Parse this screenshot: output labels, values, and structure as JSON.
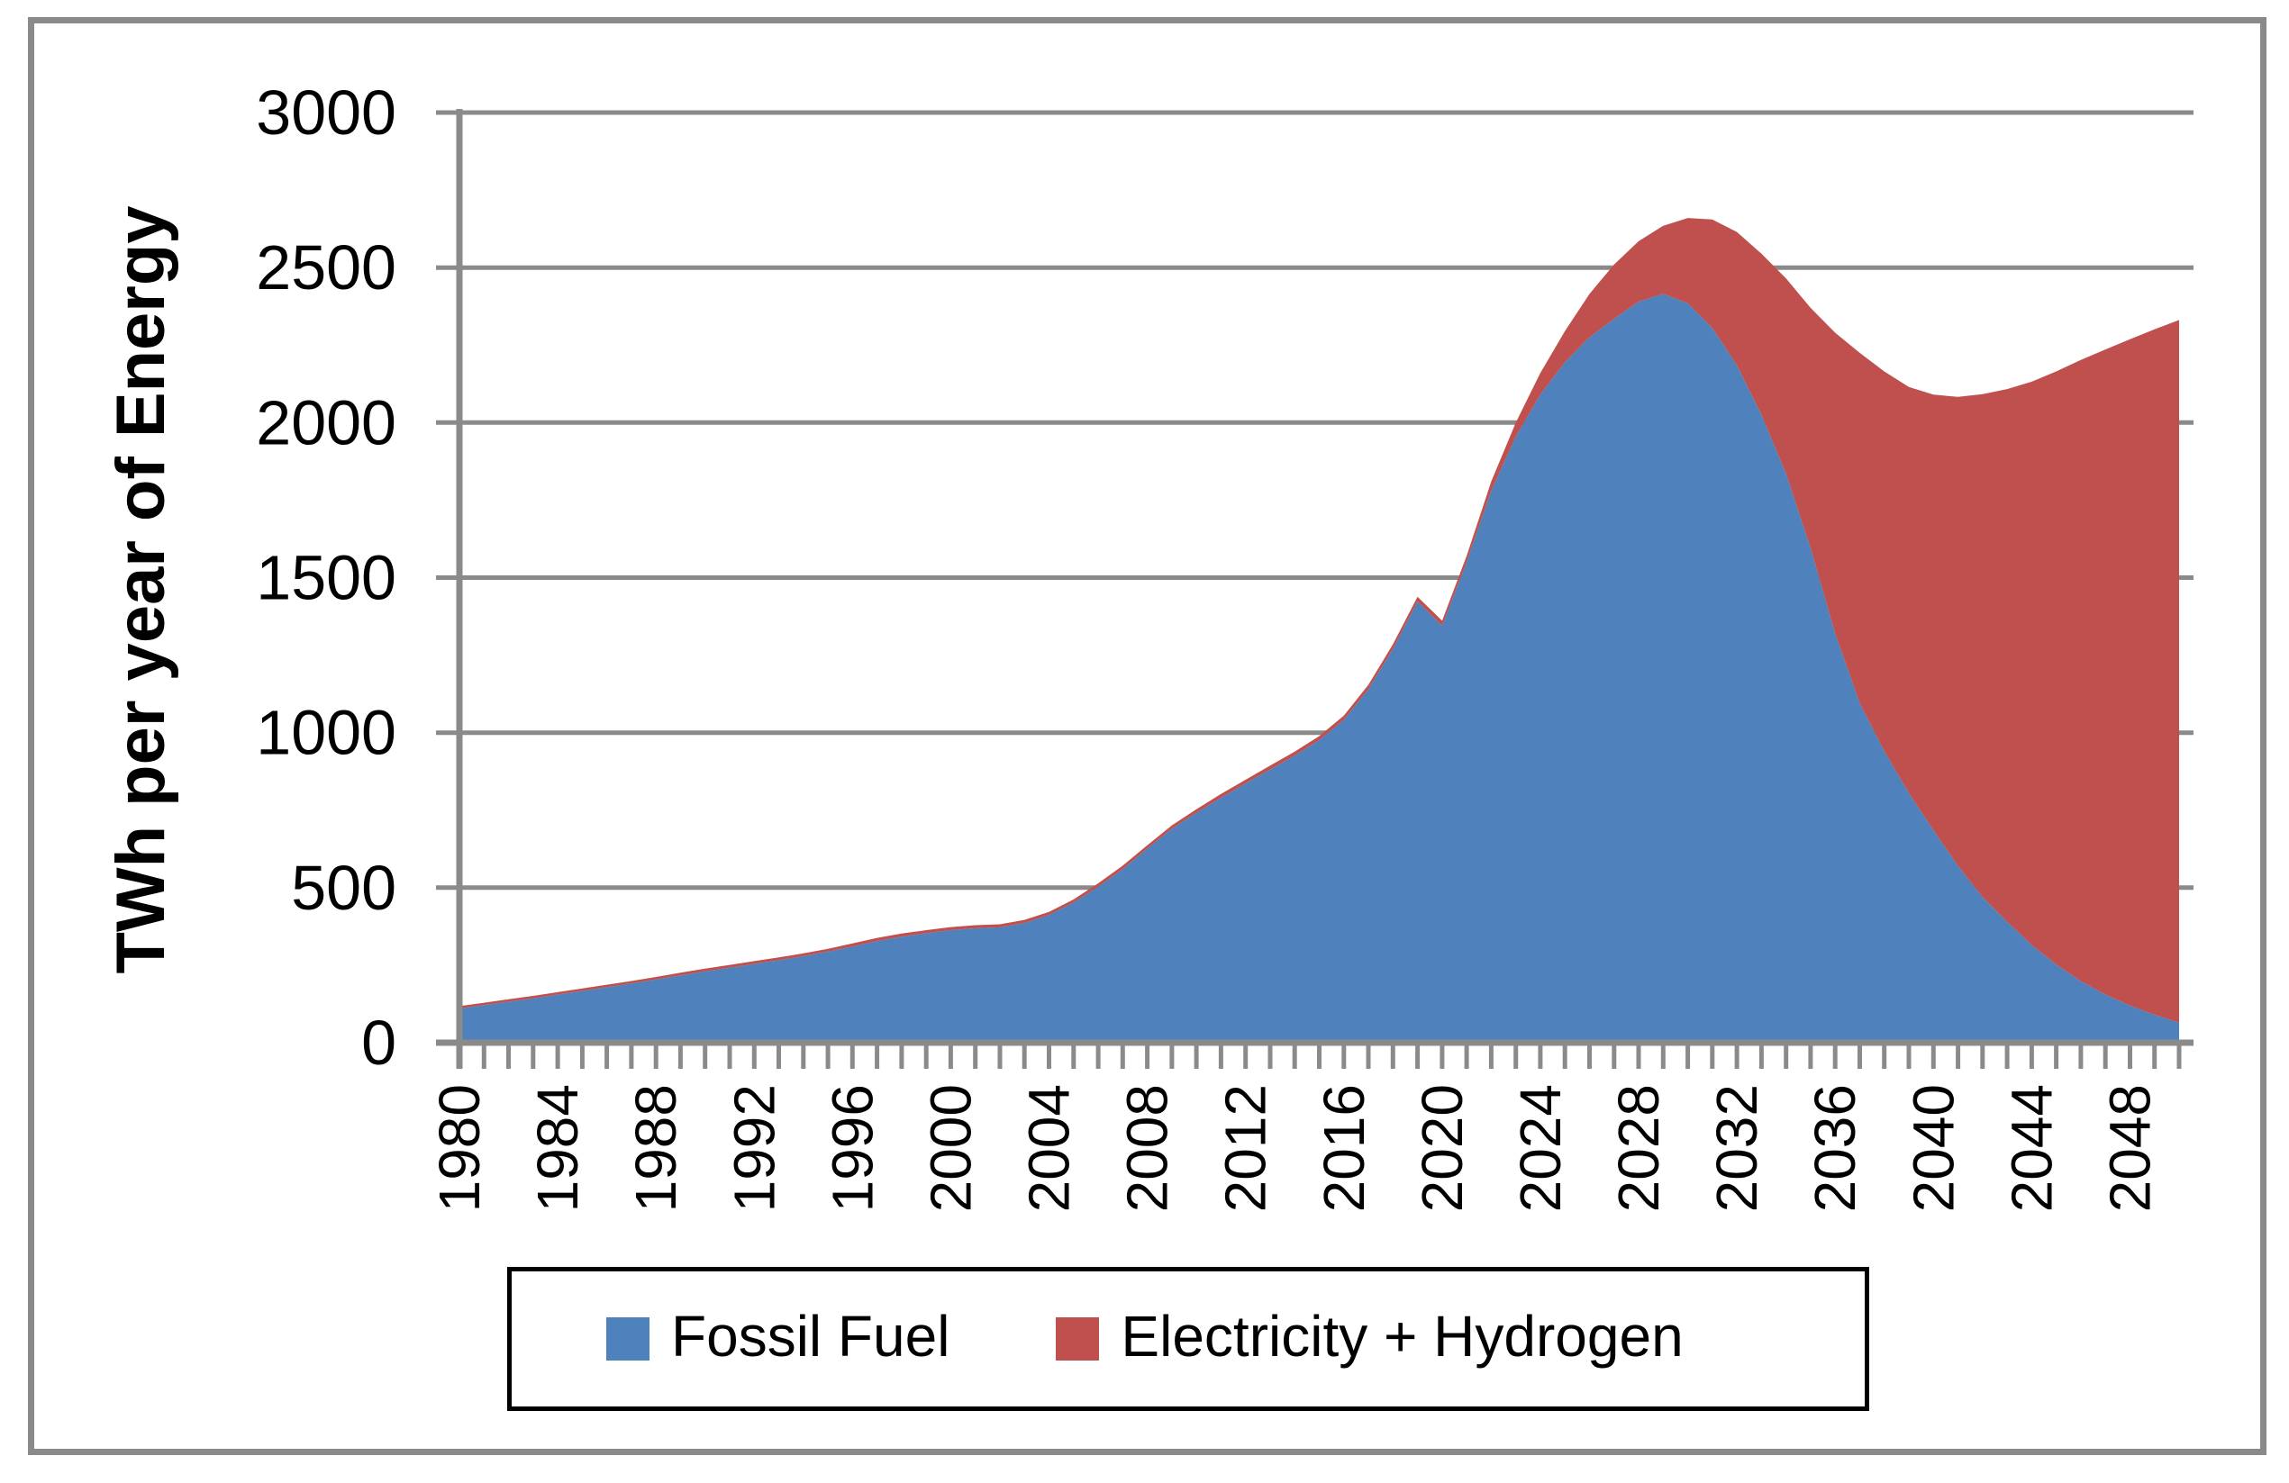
{
  "chart_data": {
    "type": "area",
    "stacked": true,
    "title": "",
    "ylabel": "TWh per year of Energy",
    "xlabel": "",
    "ylim": [
      0,
      3000
    ],
    "yticks": [
      0,
      500,
      1000,
      1500,
      2000,
      2500,
      3000
    ],
    "x_start": 1980,
    "x_end": 2050,
    "x_step": 1,
    "xtick_labels": [
      "1980",
      "1984",
      "1988",
      "1992",
      "1996",
      "2000",
      "2004",
      "2008",
      "2012",
      "2016",
      "2020",
      "2024",
      "2028",
      "2032",
      "2036",
      "2040",
      "2044",
      "2048"
    ],
    "grid": "horizontal",
    "legend_position": "bottom",
    "series": [
      {
        "name": "Fossil Fuel",
        "color": "#4F81BD",
        "values": [
          110,
          121,
          132,
          143,
          155,
          167,
          179,
          191,
          204,
          217,
          230,
          242,
          254,
          266,
          279,
          294,
          310,
          328,
          342,
          353,
          363,
          369,
          372,
          386,
          412,
          452,
          503,
          560,
          626,
          690,
          741,
          790,
          836,
          881,
          926,
          976,
          1041,
          1140,
          1270,
          1423,
          1345,
          1550,
          1780,
          1955,
          2090,
          2195,
          2275,
          2335,
          2390,
          2415,
          2385,
          2305,
          2185,
          2025,
          1835,
          1595,
          1320,
          1095,
          940,
          805,
          685,
          570,
          470,
          390,
          315,
          252,
          198,
          155,
          120,
          90,
          65
        ]
      },
      {
        "name": "Electricity + Hydrogen",
        "color": "#C0504D",
        "values": [
          8,
          8,
          8,
          8,
          8,
          8,
          8,
          8,
          8,
          9,
          9,
          9,
          9,
          9,
          9,
          9,
          10,
          10,
          10,
          10,
          10,
          10,
          10,
          10,
          10,
          10,
          11,
          11,
          11,
          11,
          12,
          12,
          12,
          13,
          13,
          13,
          14,
          14,
          15,
          15,
          16,
          20,
          30,
          45,
          70,
          100,
          140,
          175,
          195,
          220,
          275,
          350,
          430,
          520,
          630,
          775,
          970,
          1130,
          1225,
          1310,
          1405,
          1513,
          1622,
          1718,
          1817,
          1913,
          2004,
          2081,
          2149,
          2211,
          2266
        ]
      }
    ]
  },
  "colors": {
    "axis": "#8A8A8A",
    "gridline": "#8A8A8A",
    "frame": "#8A8A8A",
    "legend_border": "#000000",
    "text": "#000000",
    "background": "#FFFFFF"
  }
}
